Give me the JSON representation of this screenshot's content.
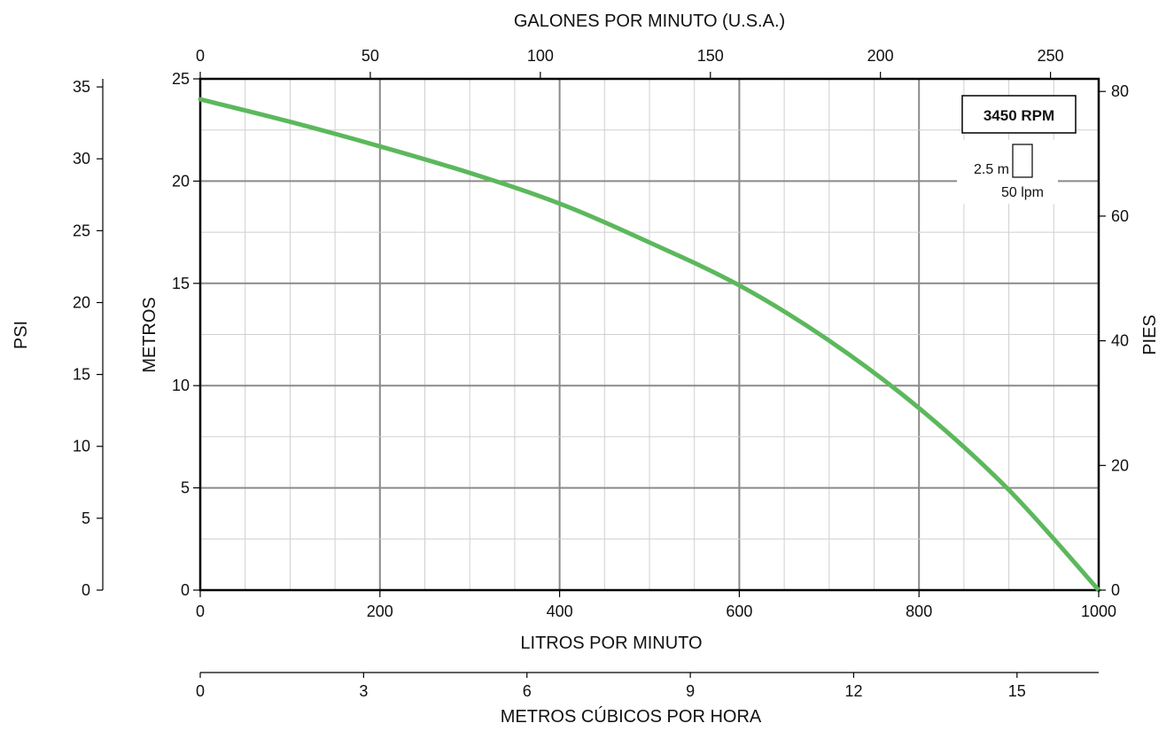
{
  "chart_data": {
    "type": "line",
    "title": "",
    "rpm_label": "3450 RPM",
    "scale_legend": {
      "head": "2.5 m",
      "flow": "50 lpm"
    },
    "grid": true,
    "colors": {
      "curve": "#5cb85c",
      "frame": "#000000",
      "grid_major": "#8a8a8a",
      "grid_minor": "#cfcfcf"
    },
    "axes": {
      "x_bottom": {
        "label": "LITROS POR MINUTO",
        "range": [
          0,
          1000
        ],
        "ticks": [
          0,
          200,
          400,
          600,
          800,
          1000
        ]
      },
      "x_top": {
        "label": "GALONES POR MINUTO (U.S.A.)",
        "range": [
          0,
          264.17
        ],
        "ticks": [
          0,
          50,
          100,
          150,
          200,
          250
        ]
      },
      "x_bottom2": {
        "label": "METROS CÚBICOS POR HORA",
        "range": [
          0,
          16.5
        ],
        "ticks": [
          0,
          3,
          6,
          9,
          12,
          15
        ]
      },
      "y_left": {
        "label": "METROS",
        "range": [
          0,
          25
        ],
        "ticks": [
          0,
          5,
          10,
          15,
          20,
          25
        ]
      },
      "y_right": {
        "label": "PIES",
        "range": [
          0,
          82.02
        ],
        "ticks": [
          0,
          20,
          40,
          60,
          80
        ]
      },
      "y_psi": {
        "label": "PSI",
        "range": [
          0,
          35.56
        ],
        "ticks": [
          0,
          5,
          10,
          15,
          20,
          25,
          30,
          35
        ]
      }
    },
    "series": [
      {
        "x": [
          0,
          100,
          200,
          300,
          400,
          500,
          600,
          700,
          800,
          900,
          1000
        ],
        "y": [
          24.0,
          22.9,
          21.7,
          20.4,
          18.9,
          17.0,
          14.9,
          12.2,
          8.9,
          4.9,
          0
        ]
      }
    ]
  }
}
